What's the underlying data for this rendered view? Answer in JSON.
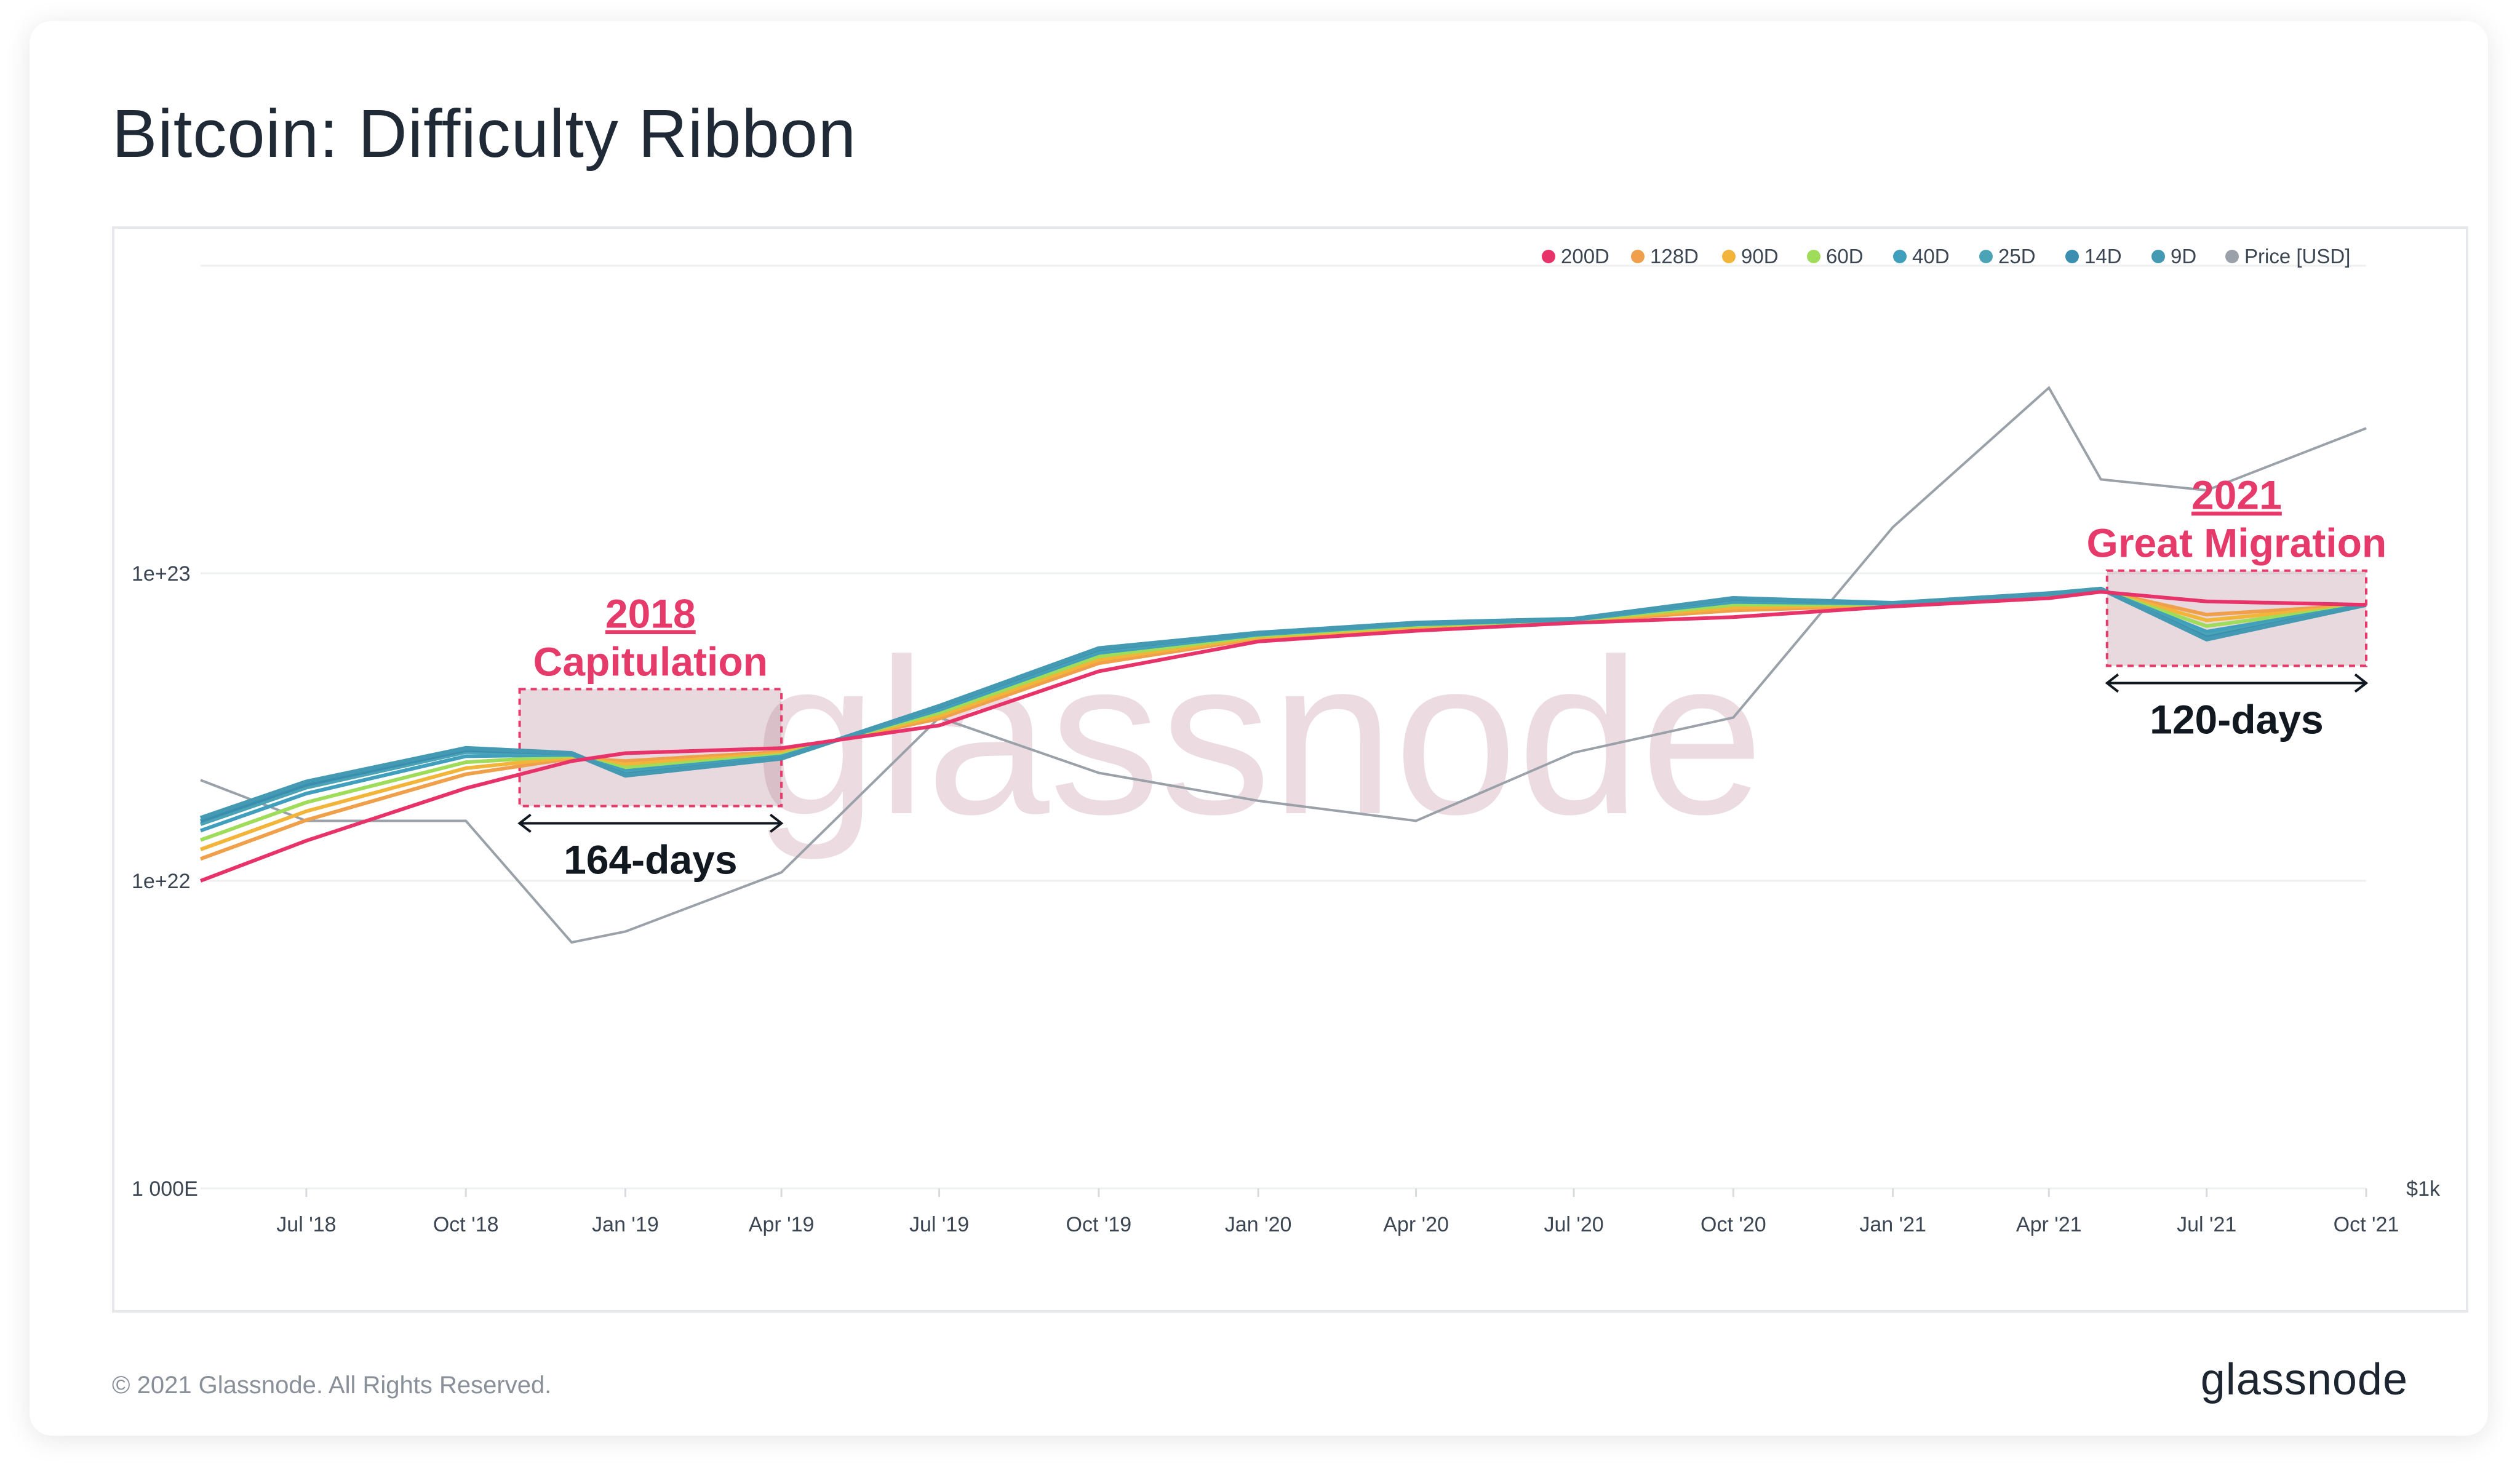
{
  "title": "Bitcoin: Difficulty Ribbon",
  "footer": {
    "copyright": "© 2021 Glassnode. All Rights Reserved.",
    "logo": "glassnode"
  },
  "watermark": "glassnode",
  "chart_data": {
    "type": "line",
    "x_ticks": [
      "Jul '18",
      "Oct '18",
      "Jan '19",
      "Apr '19",
      "Jul '19",
      "Oct '19",
      "Jan '20",
      "Apr '20",
      "Jul '20",
      "Oct '20",
      "Jan '21",
      "Apr '21",
      "Jul '21",
      "Oct '21"
    ],
    "y_left_ticks": [
      "1e+23",
      "1e+22",
      "1 000E"
    ],
    "y_right_ticks": [
      "$1k"
    ],
    "left_axis": {
      "scale": "log",
      "range": [
        1e+21,
        1e+24
      ]
    },
    "right_axis": {
      "scale": "log",
      "unit": "USD"
    },
    "legend": [
      {
        "name": "200D",
        "color": "#e8336a"
      },
      {
        "name": "128D",
        "color": "#f0a04b"
      },
      {
        "name": "90D",
        "color": "#f2b53a"
      },
      {
        "name": "60D",
        "color": "#9fdc5a"
      },
      {
        "name": "40D",
        "color": "#3f9fbd"
      },
      {
        "name": "25D",
        "color": "#4aa4b6"
      },
      {
        "name": "14D",
        "color": "#3a8fb0"
      },
      {
        "name": "9D",
        "color": "#4499b3"
      },
      {
        "name": "Price [USD]",
        "color": "#9aa1a9"
      }
    ],
    "legend_position": "top-right",
    "x_dates": [
      "2018-05",
      "2018-07",
      "2018-10",
      "2018-12",
      "2019-01",
      "2019-04",
      "2019-07",
      "2019-10",
      "2020-01",
      "2020-04",
      "2020-07",
      "2020-10",
      "2021-01",
      "2021-04",
      "2021-05",
      "2021-07",
      "2021-10"
    ],
    "series": [
      {
        "name": "200D",
        "values": [
          1e+22,
          1.35e+22,
          2e+22,
          2.45e+22,
          2.6e+22,
          2.7e+22,
          3.2e+22,
          4.8e+22,
          6e+22,
          6.5e+22,
          6.9e+22,
          7.2e+22,
          7.8e+22,
          8.3e+22,
          8.7e+22,
          8.1e+22,
          7.9e+22
        ]
      },
      {
        "name": "9D",
        "values": [
          1.6e+22,
          2.1e+22,
          2.7e+22,
          2.6e+22,
          2.2e+22,
          2.5e+22,
          3.7e+22,
          5.7e+22,
          6.4e+22,
          6.9e+22,
          7.1e+22,
          8.3e+22,
          8e+22,
          8.6e+22,
          8.9e+22,
          6.1e+22,
          7.9e+22
        ]
      },
      {
        "name": "Price [USD]",
        "values": [
          8000,
          6500,
          6500,
          3500,
          3700,
          5000,
          11000,
          8300,
          7200,
          6500,
          9200,
          11000,
          29000,
          59000,
          37000,
          35000,
          48000
        ]
      }
    ],
    "annotations": [
      {
        "title_line1": "2018",
        "title_line2": "Capitulation",
        "duration": "164-days"
      },
      {
        "title_line1": "2021",
        "title_line2": "Great Migration",
        "duration": "120-days"
      }
    ]
  }
}
